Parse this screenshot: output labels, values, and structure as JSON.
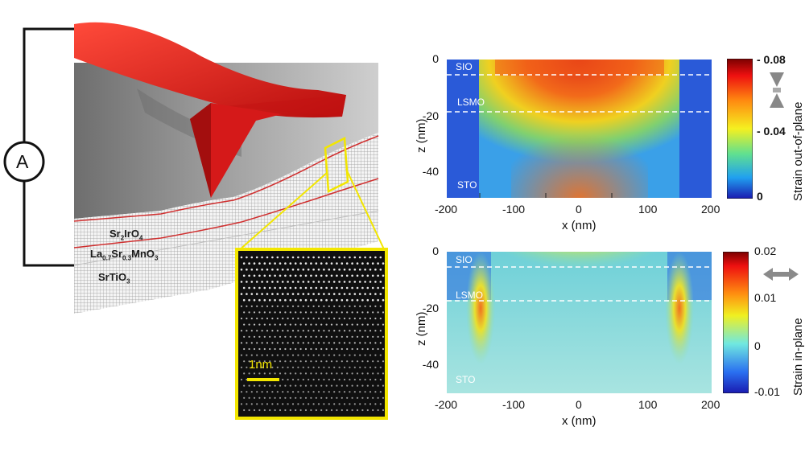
{
  "schematic": {
    "ammeter_label": "A",
    "layers": [
      "Sr2IrO4",
      "La0.7Sr0.3MnO3",
      "SrTiO3"
    ],
    "inset_scale_label": "1nm"
  },
  "colors": {
    "tip": "#e02020",
    "inset_frame": "#f2e600",
    "scalebar": "#f2e600",
    "interface_line": "#d03030"
  },
  "chart_data": [
    {
      "type": "heatmap",
      "colorbar_label": "Strain out-of-plane",
      "colorbar_ticks": [
        "- 0.08",
        "- 0.04",
        "0"
      ],
      "colorbar_range": [
        -0.08,
        0
      ],
      "xlabel": "x (nm)",
      "ylabel": "z (nm)",
      "x_ticks": [
        "-200",
        "-100",
        "0",
        "100",
        "200"
      ],
      "y_ticks": [
        "0",
        "-20",
        "-40"
      ],
      "xlim": [
        -200,
        200
      ],
      "ylim": [
        -50,
        0
      ],
      "layer_labels": [
        "SIO",
        "LSMO",
        "STO"
      ],
      "interfaces_z": [
        -6,
        -19
      ]
    },
    {
      "type": "heatmap",
      "colorbar_label": "Strain in-plane",
      "colorbar_ticks": [
        "0.02",
        "0.01",
        "0",
        "-0.01"
      ],
      "colorbar_range": [
        -0.01,
        0.02
      ],
      "xlabel": "x (nm)",
      "ylabel": "z (nm)",
      "x_ticks": [
        "-200",
        "-100",
        "0",
        "100",
        "200"
      ],
      "y_ticks": [
        "0",
        "-20",
        "-40"
      ],
      "xlim": [
        -200,
        200
      ],
      "ylim": [
        -50,
        0
      ],
      "layer_labels": [
        "SIO",
        "LSMO",
        "STO"
      ],
      "interfaces_z": [
        -6,
        -18
      ]
    }
  ]
}
